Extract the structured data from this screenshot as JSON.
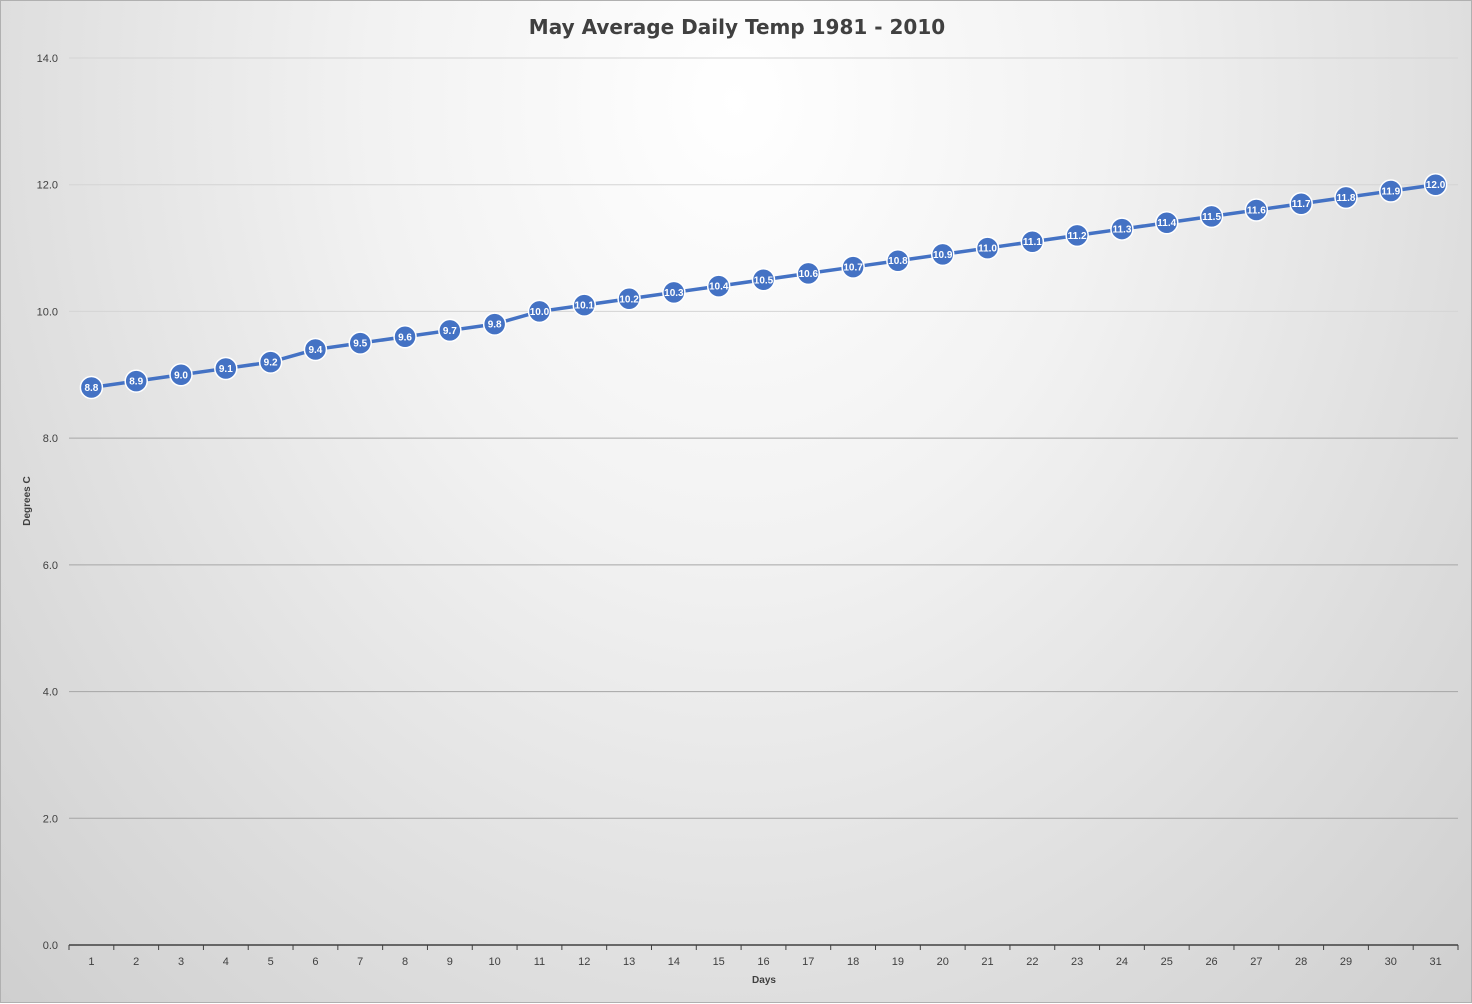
{
  "chart_data": {
    "type": "line",
    "title": "May Average Daily Temp 1981 - 2010",
    "xlabel": "Days",
    "ylabel": "Degrees C",
    "ylim": [
      0,
      14
    ],
    "y_ticks": [
      "0.0",
      "2.0",
      "4.0",
      "6.0",
      "8.0",
      "10.0",
      "12.0",
      "14.0"
    ],
    "categories": [
      "1",
      "2",
      "3",
      "4",
      "5",
      "6",
      "7",
      "8",
      "9",
      "10",
      "11",
      "12",
      "13",
      "14",
      "15",
      "16",
      "17",
      "18",
      "19",
      "20",
      "21",
      "22",
      "23",
      "24",
      "25",
      "26",
      "27",
      "28",
      "29",
      "30",
      "31"
    ],
    "series": [
      {
        "values": [
          8.8,
          8.9,
          9.0,
          9.1,
          9.2,
          9.4,
          9.5,
          9.6,
          9.7,
          9.8,
          10.0,
          10.1,
          10.2,
          10.3,
          10.4,
          10.5,
          10.6,
          10.7,
          10.8,
          10.9,
          11.0,
          11.1,
          11.2,
          11.3,
          11.4,
          11.5,
          11.6,
          11.7,
          11.8,
          11.9,
          12.0
        ],
        "labels": [
          "8.8",
          "8.9",
          "9.0",
          "9.1",
          "9.2",
          "9.4",
          "9.5",
          "9.6",
          "9.7",
          "9.8",
          "10.0",
          "10.1",
          "10.2",
          "10.3",
          "10.4",
          "10.5",
          "10.6",
          "10.7",
          "10.8",
          "10.9",
          "11.0",
          "11.1",
          "11.2",
          "11.3",
          "11.4",
          "11.5",
          "11.6",
          "11.7",
          "11.8",
          "11.9",
          "12.0"
        ],
        "color": "#4472C4"
      }
    ],
    "grid": true,
    "legend": "none"
  }
}
